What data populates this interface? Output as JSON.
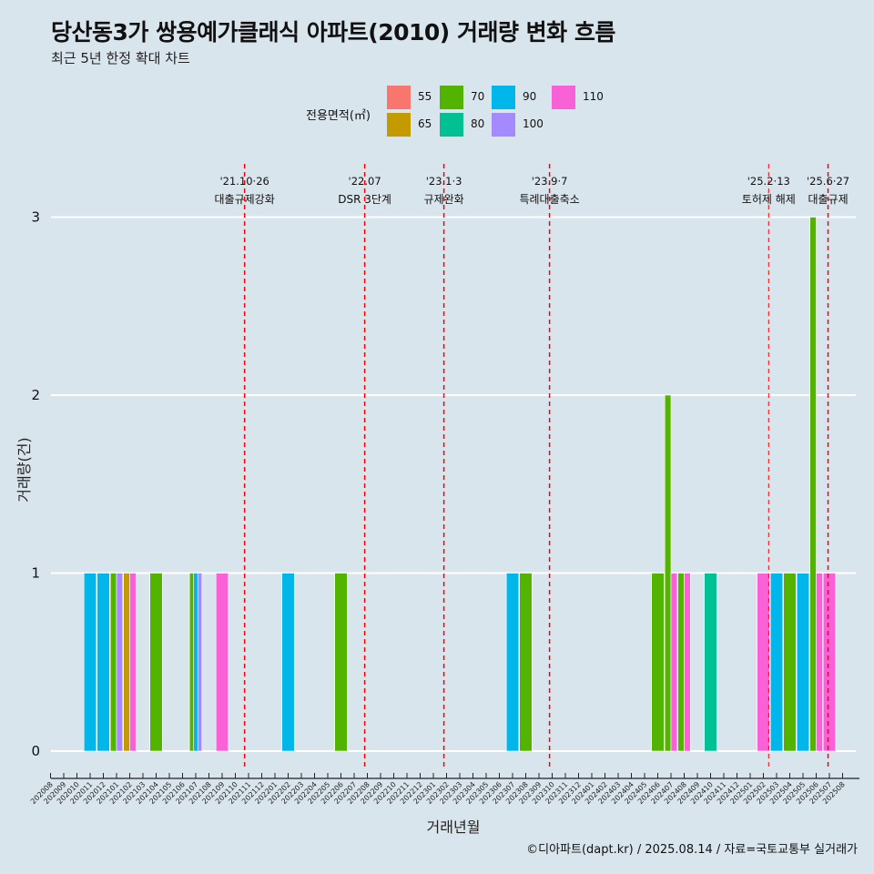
{
  "header": {
    "title": "당산동3가 쌍용예가클래식 아파트(2010) 거래량 변화 흐름",
    "subtitle": "최근 5년 한정 확대 차트"
  },
  "footer": {
    "caption": "©디아파트(dapt.kr) / 2025.08.14 / 자료=국토교통부 실거래가"
  },
  "chart_data": {
    "type": "bar",
    "title": "당산동3가 쌍용예가클래식 아파트(2010) 거래량 변화 흐름",
    "subtitle": "최근 5년 한정 확대 차트",
    "xlabel": "거래년월",
    "ylabel": "거래량(건)",
    "ylim": [
      0,
      3
    ],
    "yticks": [
      0,
      1,
      2,
      3
    ],
    "grid": true,
    "legend": {
      "title": "전용면적(㎡)",
      "placement": "top",
      "entries": [
        {
          "name": "55",
          "color": "#f8766d"
        },
        {
          "name": "65",
          "color": "#c49a00"
        },
        {
          "name": "70",
          "color": "#53b400"
        },
        {
          "name": "80",
          "color": "#00c094"
        },
        {
          "name": "90",
          "color": "#00b6eb"
        },
        {
          "name": "100",
          "color": "#a58aff"
        },
        {
          "name": "110",
          "color": "#fb61d7"
        }
      ]
    },
    "categories": [
      "202008",
      "202009",
      "202010",
      "202011",
      "202012",
      "202101",
      "202102",
      "202103",
      "202104",
      "202105",
      "202106",
      "202107",
      "202108",
      "202109",
      "202110",
      "202111",
      "202112",
      "202201",
      "202202",
      "202203",
      "202204",
      "202205",
      "202206",
      "202207",
      "202208",
      "202209",
      "202210",
      "202211",
      "202212",
      "202301",
      "202302",
      "202303",
      "202304",
      "202305",
      "202306",
      "202307",
      "202308",
      "202309",
      "202310",
      "202311",
      "202312",
      "202401",
      "202402",
      "202403",
      "202404",
      "202405",
      "202406",
      "202407",
      "202408",
      "202409",
      "202410",
      "202411",
      "202412",
      "202501",
      "202502",
      "202503",
      "202504",
      "202505",
      "202506",
      "202507",
      "202508"
    ],
    "bars": [
      {
        "month": "202011",
        "area": "90",
        "value": 1
      },
      {
        "month": "202012",
        "area": "90",
        "value": 1
      },
      {
        "month": "202101",
        "area": "70",
        "value": 1
      },
      {
        "month": "202101",
        "area": "100",
        "value": 1
      },
      {
        "month": "202102",
        "area": "65",
        "value": 1
      },
      {
        "month": "202102",
        "area": "110",
        "value": 1
      },
      {
        "month": "202104",
        "area": "70",
        "value": 1
      },
      {
        "month": "202107",
        "area": "70",
        "value": 1
      },
      {
        "month": "202107",
        "area": "90",
        "value": 1
      },
      {
        "month": "202107",
        "area": "100",
        "value": 1
      },
      {
        "month": "202109",
        "area": "110",
        "value": 1
      },
      {
        "month": "202202",
        "area": "90",
        "value": 1
      },
      {
        "month": "202206",
        "area": "70",
        "value": 1
      },
      {
        "month": "202307",
        "area": "90",
        "value": 1
      },
      {
        "month": "202308",
        "area": "70",
        "value": 1
      },
      {
        "month": "202406",
        "area": "70",
        "value": 1
      },
      {
        "month": "202407",
        "area": "70",
        "value": 2
      },
      {
        "month": "202407",
        "area": "110",
        "value": 1
      },
      {
        "month": "202408",
        "area": "70",
        "value": 1
      },
      {
        "month": "202408",
        "area": "110",
        "value": 1
      },
      {
        "month": "202410",
        "area": "80",
        "value": 1
      },
      {
        "month": "202502",
        "area": "110",
        "value": 1
      },
      {
        "month": "202503",
        "area": "90",
        "value": 1
      },
      {
        "month": "202504",
        "area": "70",
        "value": 1
      },
      {
        "month": "202505",
        "area": "90",
        "value": 1
      },
      {
        "month": "202506",
        "area": "70",
        "value": 3
      },
      {
        "month": "202506",
        "area": "110",
        "value": 1
      },
      {
        "month": "202507",
        "area": "110",
        "value": 1
      }
    ],
    "events": [
      {
        "x": 14.7,
        "date": "'21.10·26",
        "label": "대출규제강화"
      },
      {
        "x": 23.8,
        "date": "'22.07",
        "label": "DSR 3단계"
      },
      {
        "x": 29.8,
        "date": "'23.1·3",
        "label": "규제완화"
      },
      {
        "x": 37.8,
        "date": "'23.9·7",
        "label": "특례대출축소"
      },
      {
        "x": 54.4,
        "date": "'25.2·13",
        "label": "토허제 해제"
      },
      {
        "x": 58.9,
        "date": "'25.6·27",
        "label": "대출규제"
      }
    ]
  }
}
